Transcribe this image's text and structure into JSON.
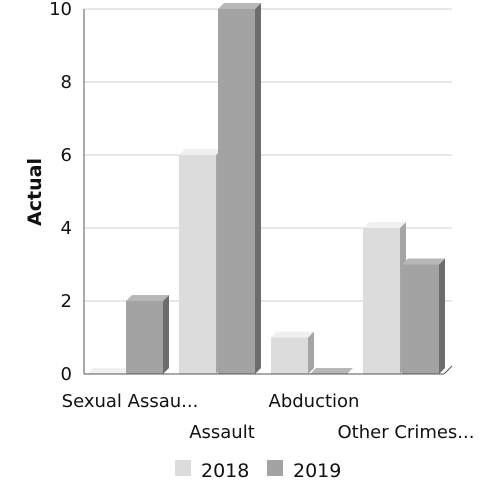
{
  "chart_data": {
    "type": "bar",
    "title": "",
    "xlabel": "",
    "ylabel": "Actual",
    "ylim": [
      0,
      10
    ],
    "yticks": [
      0,
      2,
      4,
      6,
      8,
      10
    ],
    "grid": true,
    "legend_position": "bottom",
    "categories": [
      "Sexual Assau...",
      "Assault",
      "Abduction",
      "Other Crimes..."
    ],
    "series": [
      {
        "name": "2018",
        "values": [
          0,
          6,
          1,
          4
        ],
        "color": "#dcdcdc"
      },
      {
        "name": "2019",
        "values": [
          2,
          10,
          0,
          3
        ],
        "color": "#a3a3a3"
      }
    ]
  }
}
